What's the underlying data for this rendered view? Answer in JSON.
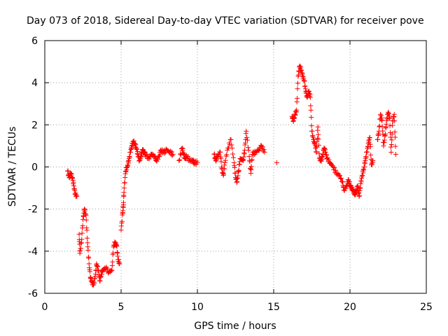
{
  "chart_data": {
    "type": "scatter",
    "title": "Day 073 of 2018, Sidereal Day-to-day VTEC variation (SDTVAR) for receiver pove",
    "xlabel": "GPS time / hours",
    "ylabel": "SDTVAR / TECUs",
    "xlim": [
      0,
      25
    ],
    "ylim": [
      -6,
      6
    ],
    "xticks": [
      0,
      5,
      10,
      15,
      20,
      25
    ],
    "yticks": [
      -6,
      -4,
      -2,
      0,
      2,
      4,
      6
    ],
    "grid": true,
    "marker": "+",
    "color": "#ff0000",
    "series": [
      {
        "name": "pove",
        "segments": [
          [
            [
              1.5,
              -0.2
            ],
            [
              1.6,
              -0.5
            ],
            [
              1.7,
              -0.3
            ],
            [
              1.8,
              -0.5
            ],
            [
              1.9,
              -0.9
            ],
            [
              2.0,
              -1.3
            ],
            [
              2.1,
              -1.4
            ]
          ],
          [
            [
              2.25,
              -3.2
            ],
            [
              2.3,
              -4.1
            ],
            [
              2.4,
              -3.6
            ],
            [
              2.5,
              -2.5
            ],
            [
              2.6,
              -2.0
            ],
            [
              2.7,
              -2.3
            ],
            [
              2.8,
              -3.6
            ],
            [
              2.9,
              -4.6
            ],
            [
              3.0,
              -5.3
            ],
            [
              3.1,
              -5.5
            ],
            [
              3.2,
              -5.6
            ],
            [
              3.3,
              -5.2
            ],
            [
              3.4,
              -4.6
            ],
            [
              3.5,
              -4.9
            ],
            [
              3.6,
              -5.4
            ],
            [
              3.7,
              -5.1
            ],
            [
              3.8,
              -4.9
            ],
            [
              4.0,
              -4.8
            ],
            [
              4.2,
              -5.0
            ],
            [
              4.4,
              -4.9
            ],
            [
              4.5,
              -3.8
            ],
            [
              4.6,
              -3.6
            ],
            [
              4.7,
              -3.7
            ],
            [
              4.8,
              -4.4
            ],
            [
              4.9,
              -4.6
            ]
          ],
          [
            [
              5.0,
              -3.0
            ],
            [
              5.1,
              -2.2
            ],
            [
              5.15,
              -1.8
            ],
            [
              5.2,
              -1.0
            ],
            [
              5.3,
              -0.2
            ],
            [
              5.4,
              0.0
            ],
            [
              5.5,
              0.3
            ],
            [
              5.6,
              0.7
            ],
            [
              5.7,
              1.0
            ],
            [
              5.8,
              1.2
            ],
            [
              5.9,
              1.1
            ],
            [
              6.0,
              0.9
            ],
            [
              6.1,
              0.6
            ],
            [
              6.2,
              0.3
            ],
            [
              6.3,
              0.5
            ],
            [
              6.4,
              0.8
            ],
            [
              6.5,
              0.7
            ],
            [
              6.6,
              0.6
            ],
            [
              6.8,
              0.4
            ],
            [
              7.0,
              0.6
            ],
            [
              7.2,
              0.5
            ],
            [
              7.3,
              0.3
            ],
            [
              7.5,
              0.5
            ],
            [
              7.6,
              0.8
            ],
            [
              7.8,
              0.7
            ],
            [
              8.0,
              0.8
            ],
            [
              8.2,
              0.7
            ],
            [
              8.4,
              0.6
            ]
          ],
          [
            [
              8.8,
              0.3
            ],
            [
              9.0,
              0.9
            ],
            [
              9.1,
              0.6
            ],
            [
              9.2,
              0.4
            ],
            [
              9.3,
              0.5
            ],
            [
              9.5,
              0.3
            ],
            [
              9.7,
              0.3
            ],
            [
              9.8,
              0.2
            ],
            [
              10.0,
              0.2
            ]
          ],
          [
            [
              11.1,
              0.6
            ],
            [
              11.2,
              0.3
            ],
            [
              11.3,
              0.5
            ],
            [
              11.5,
              0.7
            ],
            [
              11.6,
              -0.1
            ],
            [
              11.7,
              -0.4
            ],
            [
              11.8,
              0.2
            ],
            [
              12.0,
              0.9
            ],
            [
              12.2,
              1.3
            ],
            [
              12.4,
              0.2
            ],
            [
              12.5,
              -0.5
            ],
            [
              12.6,
              -0.7
            ],
            [
              12.7,
              -0.2
            ],
            [
              12.8,
              0.4
            ],
            [
              13.0,
              0.3
            ],
            [
              13.1,
              0.8
            ],
            [
              13.2,
              1.7
            ],
            [
              13.4,
              0.5
            ],
            [
              13.5,
              -0.3
            ],
            [
              13.6,
              0.6
            ],
            [
              13.8,
              0.7
            ],
            [
              14.0,
              0.8
            ],
            [
              14.2,
              1.0
            ],
            [
              14.4,
              0.7
            ]
          ],
          [
            [
              15.2,
              0.2
            ]
          ],
          [
            [
              16.2,
              2.4
            ],
            [
              16.3,
              2.2
            ],
            [
              16.4,
              2.5
            ],
            [
              16.5,
              2.7
            ],
            [
              16.6,
              4.3
            ],
            [
              16.7,
              4.8
            ],
            [
              16.8,
              4.6
            ],
            [
              16.9,
              4.3
            ],
            [
              17.0,
              4.1
            ],
            [
              17.1,
              3.6
            ],
            [
              17.2,
              3.3
            ],
            [
              17.3,
              3.6
            ],
            [
              17.4,
              3.3
            ],
            [
              17.5,
              1.7
            ],
            [
              17.6,
              1.3
            ],
            [
              17.7,
              1.1
            ],
            [
              17.8,
              0.7
            ],
            [
              17.9,
              1.9
            ],
            [
              18.0,
              0.4
            ],
            [
              18.1,
              0.3
            ],
            [
              18.2,
              0.5
            ],
            [
              18.3,
              0.9
            ],
            [
              18.4,
              0.7
            ],
            [
              18.5,
              0.4
            ],
            [
              18.7,
              0.2
            ],
            [
              18.9,
              0.0
            ],
            [
              19.1,
              -0.3
            ],
            [
              19.3,
              -0.4
            ],
            [
              19.5,
              -0.7
            ],
            [
              19.6,
              -1.1
            ],
            [
              19.8,
              -0.9
            ],
            [
              19.9,
              -0.6
            ],
            [
              20.0,
              -0.9
            ],
            [
              20.1,
              -1.0
            ],
            [
              20.2,
              -1.1
            ],
            [
              20.3,
              -1.3
            ],
            [
              20.4,
              -1.2
            ],
            [
              20.5,
              -0.9
            ],
            [
              20.6,
              -1.4
            ],
            [
              20.7,
              -0.8
            ],
            [
              20.8,
              -0.4
            ],
            [
              20.9,
              -0.1
            ],
            [
              21.0,
              0.3
            ],
            [
              21.1,
              0.7
            ],
            [
              21.2,
              1.1
            ],
            [
              21.3,
              1.4
            ],
            [
              21.4,
              0.1
            ],
            [
              21.5,
              0.3
            ]
          ],
          [
            [
              21.8,
              1.3
            ],
            [
              21.9,
              1.7
            ],
            [
              22.0,
              2.5
            ],
            [
              22.1,
              2.2
            ],
            [
              22.2,
              1.0
            ],
            [
              22.3,
              1.5
            ],
            [
              22.4,
              2.2
            ],
            [
              22.5,
              2.6
            ],
            [
              22.6,
              2.3
            ],
            [
              22.7,
              0.7
            ],
            [
              22.8,
              2.2
            ],
            [
              22.9,
              2.5
            ],
            [
              23.0,
              0.6
            ]
          ]
        ]
      }
    ]
  }
}
